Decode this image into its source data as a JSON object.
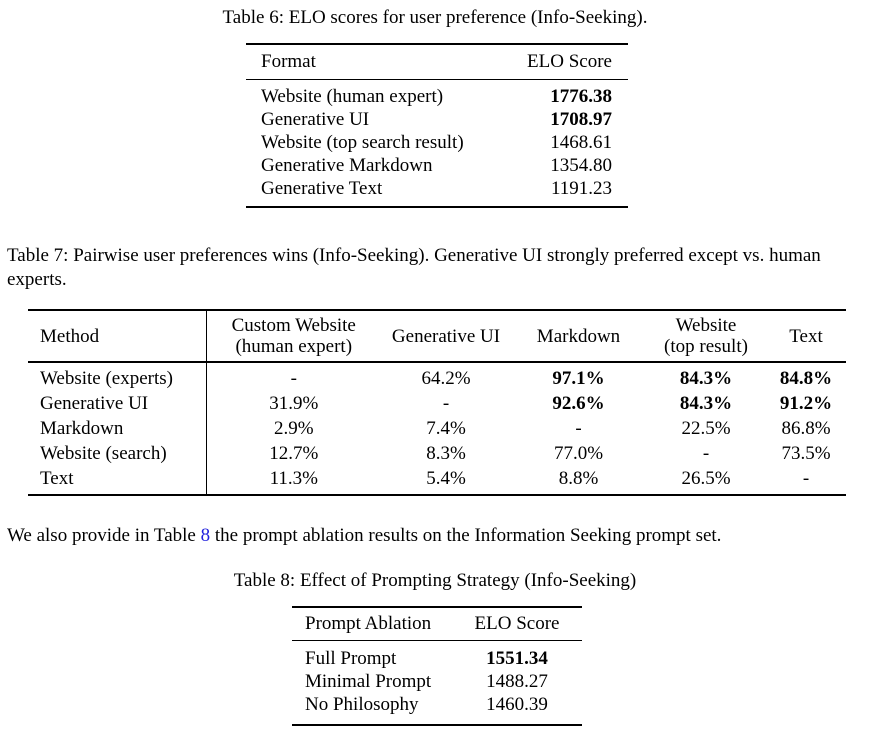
{
  "page": {
    "background": "#ffffff",
    "text_color": "#000000",
    "link_color": "#2222dd"
  },
  "table6": {
    "caption": "Table 6: ELO scores for user preference (Info-Seeking).",
    "headers": [
      "Format",
      "ELO Score"
    ],
    "rows": [
      {
        "cells": [
          "Website (human expert)",
          "1776.38"
        ],
        "bold": [
          false,
          true
        ]
      },
      {
        "cells": [
          "Generative UI",
          "1708.97"
        ],
        "bold": [
          false,
          true
        ]
      },
      {
        "cells": [
          "Website (top search result)",
          "1468.61"
        ],
        "bold": [
          false,
          false
        ]
      },
      {
        "cells": [
          "Generative Markdown",
          "1354.80"
        ],
        "bold": [
          false,
          false
        ]
      },
      {
        "cells": [
          "Generative Text",
          "1191.23"
        ],
        "bold": [
          false,
          false
        ]
      }
    ]
  },
  "table7": {
    "caption": "Table 7: Pairwise user preferences wins (Info-Seeking). Generative UI strongly preferred except vs. human experts.",
    "headers": [
      "Method",
      "Custom Website\n(human expert)",
      "Generative UI",
      "Markdown",
      "Website\n(top result)",
      "Text"
    ],
    "rows": [
      {
        "cells": [
          "Website (experts)",
          "-",
          "64.2%",
          "97.1%",
          "84.3%",
          "84.8%"
        ],
        "bold": [
          false,
          false,
          false,
          true,
          true,
          true
        ]
      },
      {
        "cells": [
          "Generative UI",
          "31.9%",
          "-",
          "92.6%",
          "84.3%",
          "91.2%"
        ],
        "bold": [
          false,
          false,
          false,
          true,
          true,
          true
        ]
      },
      {
        "cells": [
          "Markdown",
          "2.9%",
          "7.4%",
          "-",
          "22.5%",
          "86.8%"
        ],
        "bold": [
          false,
          false,
          false,
          false,
          false,
          false
        ]
      },
      {
        "cells": [
          "Website (search)",
          "12.7%",
          "8.3%",
          "77.0%",
          "-",
          "73.5%"
        ],
        "bold": [
          false,
          false,
          false,
          false,
          false,
          false
        ]
      },
      {
        "cells": [
          "Text",
          "11.3%",
          "5.4%",
          "8.8%",
          "26.5%",
          "-"
        ],
        "bold": [
          false,
          false,
          false,
          false,
          false,
          false
        ]
      }
    ]
  },
  "paragraph": {
    "before": "We also provide in Table ",
    "link": "8",
    "after": " the prompt ablation results on the Information Seeking prompt set."
  },
  "table8": {
    "caption": "Table 8: Effect of Prompting Strategy (Info-Seeking)",
    "headers": [
      "Prompt Ablation",
      "ELO Score"
    ],
    "rows": [
      {
        "cells": [
          "Full Prompt",
          "1551.34"
        ],
        "bold": [
          false,
          true
        ]
      },
      {
        "cells": [
          "Minimal Prompt",
          "1488.27"
        ],
        "bold": [
          false,
          false
        ]
      },
      {
        "cells": [
          "No Philosophy",
          "1460.39"
        ],
        "bold": [
          false,
          false
        ]
      }
    ]
  }
}
